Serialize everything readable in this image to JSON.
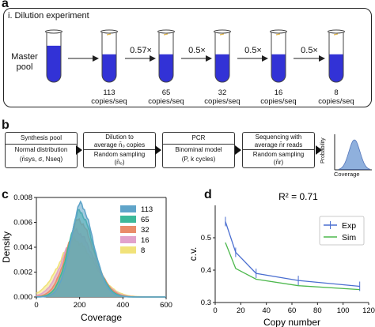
{
  "panel_a": {
    "letter": "a",
    "title": "i. Dilution experiment",
    "master_label_1": "Master",
    "master_label_2": "pool",
    "dilution_steps": [
      "0.57×",
      "0.5×",
      "0.5×",
      "0.5×"
    ],
    "tubes": [
      {
        "copies": "113",
        "unit": "copies/seq"
      },
      {
        "copies": "65",
        "unit": "copies/seq"
      },
      {
        "copies": "32",
        "unit": "copies/seq"
      },
      {
        "copies": "16",
        "unit": "copies/seq"
      },
      {
        "copies": "8",
        "unit": "copies/seq"
      }
    ],
    "tube_color": "#3232d6"
  },
  "panel_b": {
    "letter": "b",
    "boxes": [
      {
        "top": "Synthesis pool",
        "mid": "Normal distribution",
        "bottom": "(n̄sys, σ, Nseq)"
      },
      {
        "top": "Dilution to",
        "top2": "average n̄₀ copies",
        "mid": "Random sampling",
        "bottom": "(n̄₀)"
      },
      {
        "top": "PCR",
        "mid": "Binominal model",
        "bottom": "(P, k cycles)"
      },
      {
        "top": "Sequencing with",
        "top2": "average n̄r reads",
        "mid": "Random sampling",
        "bottom": "(n̄r)"
      }
    ],
    "ylabel": "Probability",
    "xlabel": "Coverage",
    "curve_color": "#8fb0dd"
  },
  "panel_c": {
    "letter": "c",
    "chart_data": {
      "type": "area",
      "xlabel": "Coverage",
      "ylabel": "Density",
      "xlim": [
        0,
        600
      ],
      "ylim": [
        0,
        0.008
      ],
      "xticks": [
        "0",
        "200",
        "400",
        "600"
      ],
      "yticks": [
        "0.000",
        "0.002",
        "0.004",
        "0.006",
        "0.008"
      ],
      "legend_position": "top-right",
      "series": [
        {
          "name": "113",
          "color": "#5fa4c9",
          "mean": 200,
          "sd": 55,
          "peak": 0.0075
        },
        {
          "name": "65",
          "color": "#3cb99a",
          "mean": 195,
          "sd": 60,
          "peak": 0.0069
        },
        {
          "name": "32",
          "color": "#e98c6a",
          "mean": 190,
          "sd": 66,
          "peak": 0.0062
        },
        {
          "name": "16",
          "color": "#e2a2cc",
          "mean": 180,
          "sd": 74,
          "peak": 0.0053
        },
        {
          "name": "8",
          "color": "#f1e27a",
          "mean": 170,
          "sd": 84,
          "peak": 0.0046
        }
      ]
    }
  },
  "panel_d": {
    "letter": "d",
    "chart_data": {
      "type": "line",
      "title": "R² = 0.71",
      "xlabel": "Copy number",
      "ylabel": "c.v.",
      "xlim": [
        0,
        120
      ],
      "ylim": [
        0.3,
        0.6
      ],
      "xticks": [
        "0",
        "20",
        "40",
        "60",
        "80",
        "100",
        "120"
      ],
      "yticks": [
        "0.3",
        "0.4",
        "0.5"
      ],
      "legend_position": "top-right",
      "series": [
        {
          "name": "Exp",
          "color": "#4a6ed0",
          "x": [
            8,
            16,
            32,
            65,
            113
          ],
          "y": [
            0.55,
            0.455,
            0.39,
            0.368,
            0.35
          ]
        },
        {
          "name": "Sim",
          "color": "#4db84d",
          "x": [
            8,
            16,
            32,
            65,
            113
          ],
          "y": [
            0.485,
            0.405,
            0.372,
            0.352,
            0.34
          ]
        }
      ]
    }
  }
}
